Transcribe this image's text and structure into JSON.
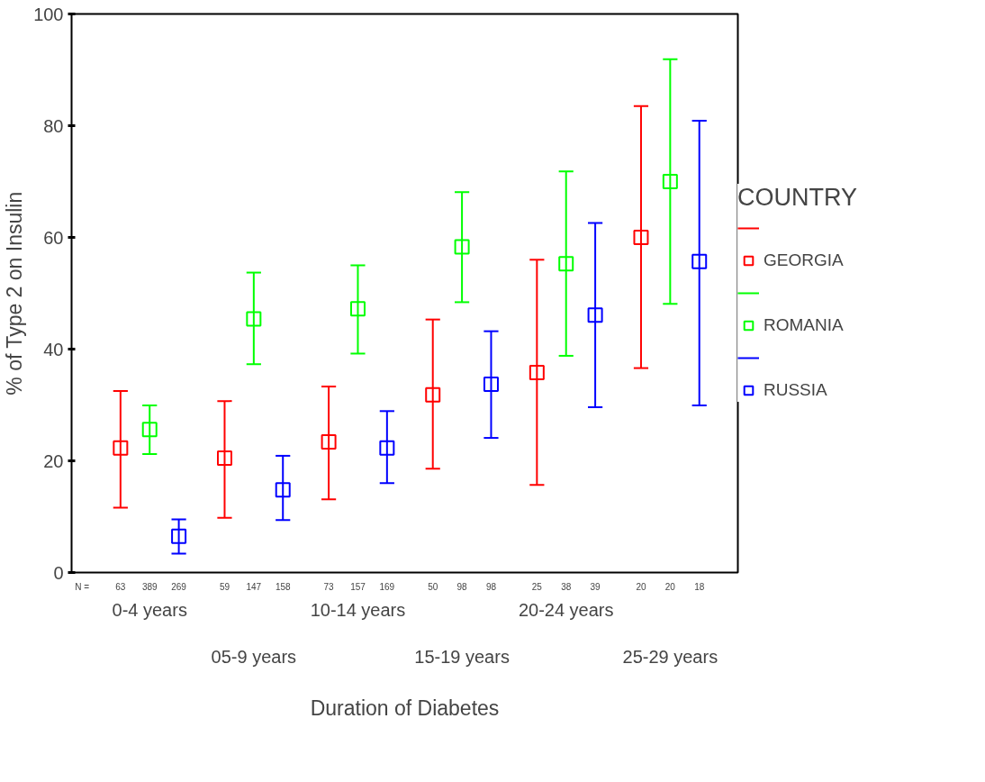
{
  "chart_data": {
    "type": "scatter",
    "xlabel": "Duration of Diabetes",
    "ylabel": "% of Type 2 on Insulin",
    "legend_title": "COUNTRY",
    "categories": [
      "0-4 years",
      "05-9 years",
      "10-14 years",
      "15-19 years",
      "20-24 years",
      "25-29 years"
    ],
    "series": [
      {
        "name": "GEORGIA",
        "color": "#ff0000",
        "values": [
          22.3,
          20.5,
          23.4,
          31.8,
          35.8,
          60
        ],
        "errors": [
          [
            11.6,
            32.5
          ],
          [
            9.8,
            30.7
          ],
          [
            13.1,
            33.3
          ],
          [
            18.6,
            45.3
          ],
          [
            15.7,
            56
          ],
          [
            36.6,
            83.5
          ]
        ]
      },
      {
        "name": "ROMANIA",
        "color": "#00ff00",
        "values": [
          25.6,
          45.4,
          47.2,
          58.3,
          55.3,
          70
        ],
        "errors": [
          [
            21.2,
            29.9
          ],
          [
            37.3,
            53.7
          ],
          [
            39.2,
            55
          ],
          [
            48.4,
            68.1
          ],
          [
            38.8,
            71.8
          ],
          [
            48.1,
            91.9
          ]
        ]
      },
      {
        "name": "RUSSIA",
        "color": "#0000ff",
        "values": [
          6.5,
          14.8,
          22.3,
          33.7,
          46.1,
          55.7
        ],
        "errors": [
          [
            3.4,
            9.5
          ],
          [
            9.4,
            20.9
          ],
          [
            16,
            28.9
          ],
          [
            24.1,
            43.2
          ],
          [
            29.6,
            62.6
          ],
          [
            29.9,
            80.9
          ]
        ]
      }
    ],
    "annotations": [
      "N =",
      "63",
      "389",
      "269",
      "59",
      "147",
      "158",
      "73",
      "157",
      "169",
      "50",
      "98",
      "98",
      "25",
      "38",
      "39",
      "20",
      "20",
      "18"
    ],
    "ylim": [
      0,
      100
    ],
    "yticks": [
      0,
      20,
      40,
      60,
      80,
      100
    ],
    "grid": false,
    "legend": "right",
    "marker": "square"
  }
}
